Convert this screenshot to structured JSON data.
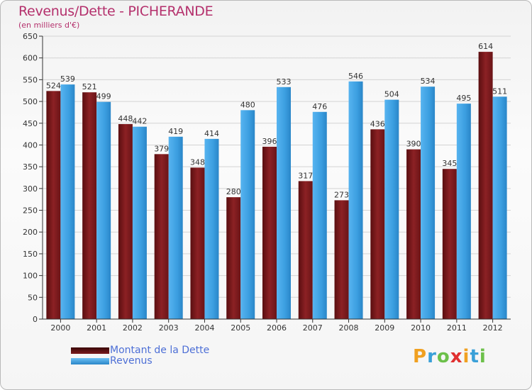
{
  "header": {
    "title": "Revenus/Dette - PICHERANDE",
    "subtitle": "(en milliers d'€)"
  },
  "colors": {
    "dette": "#8c2124",
    "revenus": "#3b9ee0"
  },
  "chart_data": {
    "type": "bar",
    "title": "Revenus/Dette - PICHERANDE",
    "subtitle": "(en milliers d'€)",
    "categories": [
      "2000",
      "2001",
      "2002",
      "2003",
      "2004",
      "2005",
      "2006",
      "2007",
      "2008",
      "2009",
      "2010",
      "2011",
      "2012"
    ],
    "series": [
      {
        "name": "Montant de la Dette",
        "values": [
          524,
          521,
          448,
          379,
          348,
          280,
          396,
          317,
          273,
          436,
          390,
          345,
          614
        ]
      },
      {
        "name": "Revenus",
        "values": [
          539,
          499,
          442,
          419,
          414,
          480,
          533,
          476,
          546,
          504,
          534,
          495,
          511
        ]
      }
    ],
    "ylim": [
      0,
      650
    ],
    "yticks": [
      0,
      50,
      100,
      150,
      200,
      250,
      300,
      350,
      400,
      450,
      500,
      550,
      600,
      650
    ],
    "grid": true,
    "legend_position": "bottom-left"
  },
  "legend": {
    "dette_label": "Montant de la Dette",
    "revenus_label": "Revenus"
  },
  "logo": {
    "letters": [
      "P",
      "r",
      "o",
      "x",
      "i",
      "t",
      "i"
    ],
    "colors": [
      "#f0a020",
      "#3aa0d8",
      "#6cc04a",
      "#e03030",
      "#f0a020",
      "#3aa0d8",
      "#6cc04a"
    ]
  }
}
